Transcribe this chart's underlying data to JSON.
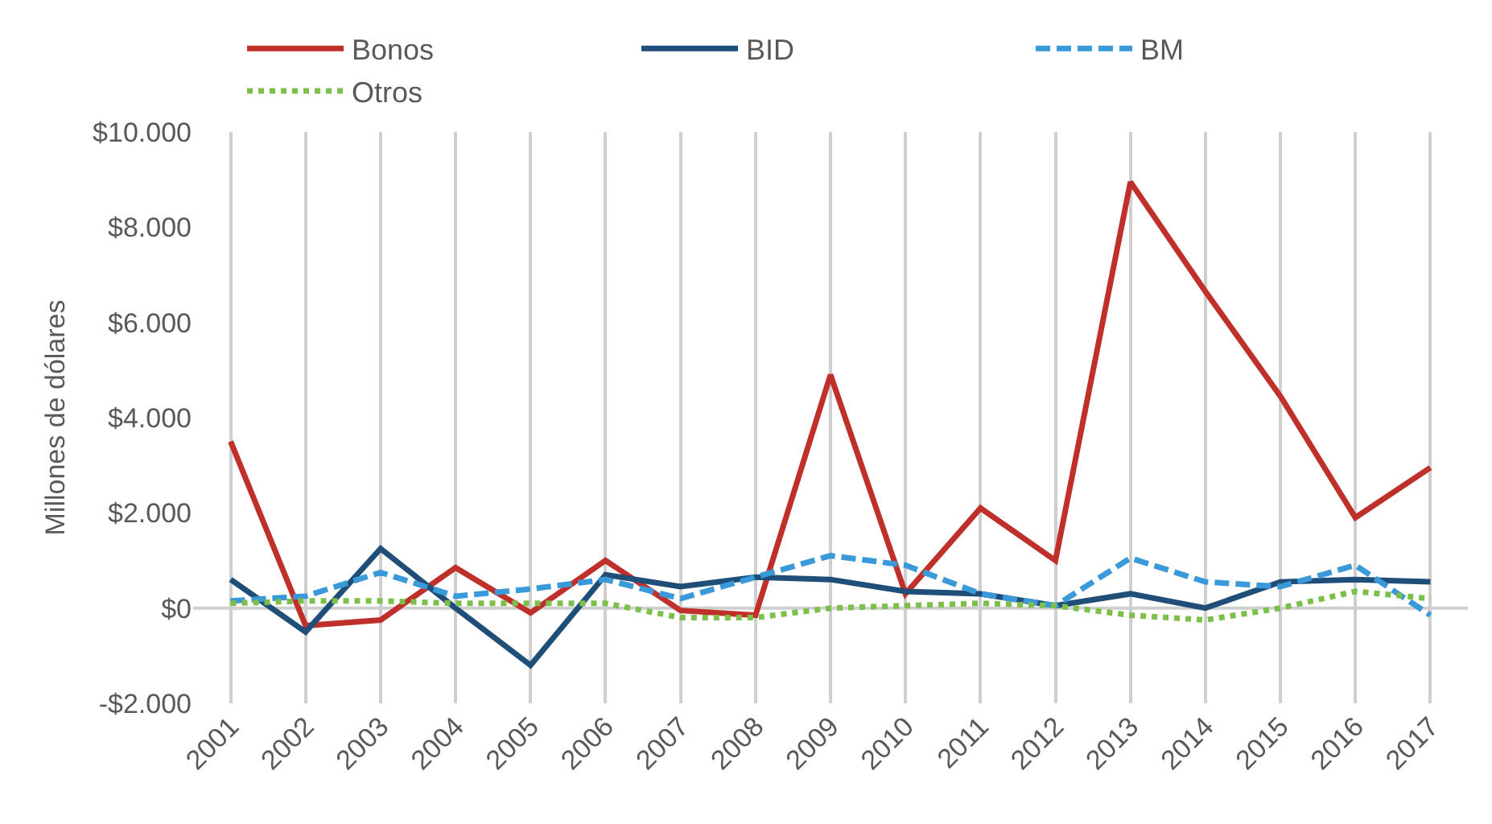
{
  "chart_data": {
    "type": "line",
    "ylabel": "Millones de dólares",
    "categories": [
      "2001",
      "2002",
      "2003",
      "2004",
      "2005",
      "2006",
      "2007",
      "2008",
      "2009",
      "2010",
      "2011",
      "2012",
      "2013",
      "2014",
      "2015",
      "2016",
      "2017"
    ],
    "series": [
      {
        "name": "Bonos",
        "color": "#c0302a",
        "line_style": "solid",
        "values": [
          3500,
          -370,
          -250,
          850,
          -100,
          1000,
          -50,
          -150,
          4900,
          300,
          2100,
          1000,
          8950,
          6650,
          4450,
          1900,
          2950
        ]
      },
      {
        "name": "BID",
        "color": "#1f4e79",
        "line_style": "solid",
        "values": [
          600,
          -500,
          1250,
          0,
          -1200,
          700,
          450,
          650,
          600,
          350,
          300,
          50,
          300,
          0,
          550,
          600,
          550
        ]
      },
      {
        "name": "BM",
        "color": "#3a9ad9",
        "line_style": "dashed",
        "values": [
          150,
          250,
          750,
          250,
          400,
          600,
          200,
          650,
          1100,
          900,
          300,
          50,
          1050,
          550,
          450,
          900,
          -150
        ]
      },
      {
        "name": "Otros",
        "color": "#7cc04b",
        "line_style": "dotted",
        "values": [
          100,
          150,
          150,
          100,
          100,
          100,
          -200,
          -200,
          0,
          50,
          100,
          50,
          -150,
          -250,
          0,
          350,
          200
        ]
      }
    ],
    "ylim": [
      -2000,
      10000
    ],
    "yticks": [
      {
        "value": -2000,
        "label": "-$2.000"
      },
      {
        "value": 0,
        "label": "$0"
      },
      {
        "value": 2000,
        "label": "$2.000"
      },
      {
        "value": 4000,
        "label": "$4.000"
      },
      {
        "value": 6000,
        "label": "$6.000"
      },
      {
        "value": 8000,
        "label": "$8.000"
      },
      {
        "value": 10000,
        "label": "$10.000"
      }
    ],
    "ref_lines": [
      {
        "axis": "y",
        "value": 0,
        "color": "#cfcfcf"
      }
    ],
    "grid": "x",
    "legend": "top",
    "marker": "none"
  }
}
